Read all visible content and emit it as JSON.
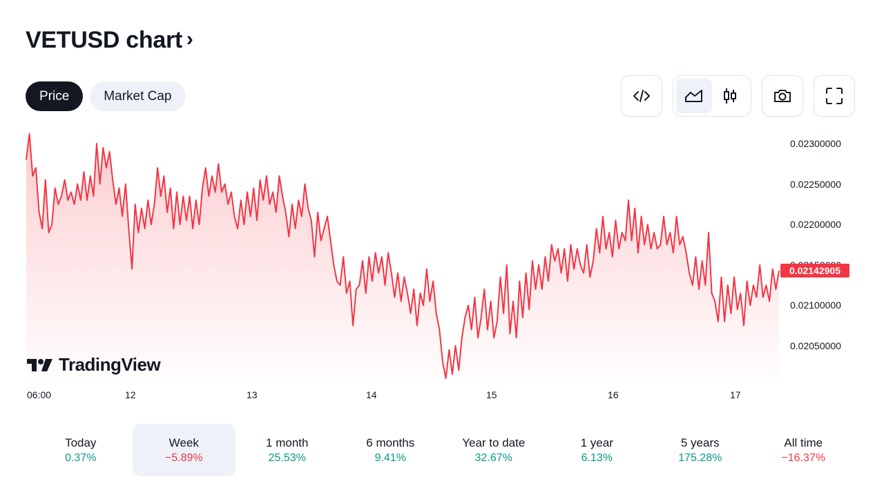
{
  "header": {
    "title": "VETUSD chart",
    "chevron": "›"
  },
  "tabs": [
    {
      "label": "Price",
      "active": true
    },
    {
      "label": "Market Cap",
      "active": false
    }
  ],
  "toolbar": {
    "embed_icon": "code-brackets-icon",
    "line_icon": "area-chart-icon",
    "candle_icon": "candlestick-icon",
    "snapshot_icon": "camera-icon",
    "fullscreen_icon": "fullscreen-icon"
  },
  "chart_data": {
    "type": "area",
    "y_ticks": [
      "0.02300000",
      "0.02250000",
      "0.02200000",
      "0.02150000",
      "0.02100000",
      "0.02050000"
    ],
    "x_ticks": [
      "06:00",
      "12",
      "13",
      "14",
      "15",
      "16",
      "17"
    ],
    "current_price": "0.02142905",
    "ylim": [
      0.0201,
      0.0232
    ],
    "line_color": "#f23645",
    "values": [
      0.0228,
      0.02312,
      0.0226,
      0.0227,
      0.02215,
      0.02195,
      0.02255,
      0.0219,
      0.022,
      0.02245,
      0.02225,
      0.02235,
      0.02255,
      0.0223,
      0.0224,
      0.02225,
      0.0225,
      0.0223,
      0.02265,
      0.0223,
      0.0226,
      0.02235,
      0.023,
      0.0225,
      0.02295,
      0.0227,
      0.0229,
      0.02255,
      0.02225,
      0.02245,
      0.0221,
      0.0225,
      0.02195,
      0.02145,
      0.02225,
      0.0219,
      0.0222,
      0.02195,
      0.0223,
      0.022,
      0.02225,
      0.0227,
      0.02235,
      0.0226,
      0.02215,
      0.02245,
      0.02195,
      0.0224,
      0.022,
      0.02235,
      0.02205,
      0.02235,
      0.02195,
      0.0223,
      0.022,
      0.02245,
      0.0227,
      0.02235,
      0.0226,
      0.0224,
      0.02275,
      0.0224,
      0.0225,
      0.02225,
      0.0224,
      0.0221,
      0.02195,
      0.0223,
      0.022,
      0.0224,
      0.0221,
      0.02245,
      0.02205,
      0.02255,
      0.0223,
      0.0226,
      0.02225,
      0.0224,
      0.02215,
      0.0226,
      0.02235,
      0.02215,
      0.02185,
      0.02225,
      0.02195,
      0.0223,
      0.0221,
      0.0225,
      0.0222,
      0.02205,
      0.0216,
      0.02215,
      0.0218,
      0.02195,
      0.0221,
      0.0218,
      0.0215,
      0.0213,
      0.02125,
      0.0216,
      0.02115,
      0.0213,
      0.02075,
      0.0212,
      0.02125,
      0.02155,
      0.02115,
      0.0216,
      0.0213,
      0.02165,
      0.0214,
      0.0216,
      0.02125,
      0.02165,
      0.0214,
      0.0211,
      0.0214,
      0.02105,
      0.02135,
      0.02115,
      0.0209,
      0.0212,
      0.02075,
      0.02115,
      0.021,
      0.02145,
      0.02105,
      0.0213,
      0.0209,
      0.0207,
      0.0203,
      0.0201,
      0.02045,
      0.02015,
      0.0205,
      0.0202,
      0.0206,
      0.02085,
      0.021,
      0.0207,
      0.0211,
      0.0206,
      0.02085,
      0.0212,
      0.0207,
      0.02105,
      0.0206,
      0.0208,
      0.02135,
      0.0209,
      0.0215,
      0.02065,
      0.02105,
      0.0206,
      0.0213,
      0.02085,
      0.0214,
      0.02095,
      0.02155,
      0.0212,
      0.0215,
      0.0212,
      0.0216,
      0.0213,
      0.02175,
      0.02155,
      0.0217,
      0.0214,
      0.0217,
      0.0213,
      0.02175,
      0.02145,
      0.0217,
      0.0215,
      0.0214,
      0.02175,
      0.02135,
      0.02155,
      0.02195,
      0.02165,
      0.0221,
      0.0217,
      0.0219,
      0.0216,
      0.02205,
      0.0217,
      0.0219,
      0.0218,
      0.0223,
      0.0218,
      0.0222,
      0.02165,
      0.0221,
      0.02175,
      0.022,
      0.0217,
      0.0219,
      0.0217,
      0.02175,
      0.0221,
      0.02175,
      0.0219,
      0.02165,
      0.0221,
      0.02175,
      0.02185,
      0.02165,
      0.0214,
      0.02125,
      0.0216,
      0.0212,
      0.02155,
      0.02125,
      0.0219,
      0.02115,
      0.02105,
      0.0208,
      0.02135,
      0.0208,
      0.02125,
      0.0209,
      0.02135,
      0.02095,
      0.02115,
      0.02075,
      0.0213,
      0.021,
      0.02125,
      0.0211,
      0.0215,
      0.0211,
      0.02125,
      0.02105,
      0.02145,
      0.0212,
      0.02142905
    ],
    "x_tick_positions": [
      0.0,
      0.139,
      0.298,
      0.456,
      0.615,
      0.776,
      0.937
    ]
  },
  "chart_logo": {
    "text": "TradingView"
  },
  "periods": [
    {
      "label": "Today",
      "value": "0.37%",
      "sign": "pos",
      "selected": false
    },
    {
      "label": "Week",
      "value": "−5.89%",
      "sign": "neg",
      "selected": true
    },
    {
      "label": "1 month",
      "value": "25.53%",
      "sign": "pos",
      "selected": false
    },
    {
      "label": "6 months",
      "value": "9.41%",
      "sign": "pos",
      "selected": false
    },
    {
      "label": "Year to date",
      "value": "32.67%",
      "sign": "pos",
      "selected": false
    },
    {
      "label": "1 year",
      "value": "6.13%",
      "sign": "pos",
      "selected": false
    },
    {
      "label": "5 years",
      "value": "175.28%",
      "sign": "pos",
      "selected": false
    },
    {
      "label": "All time",
      "value": "−16.37%",
      "sign": "neg",
      "selected": false
    }
  ]
}
